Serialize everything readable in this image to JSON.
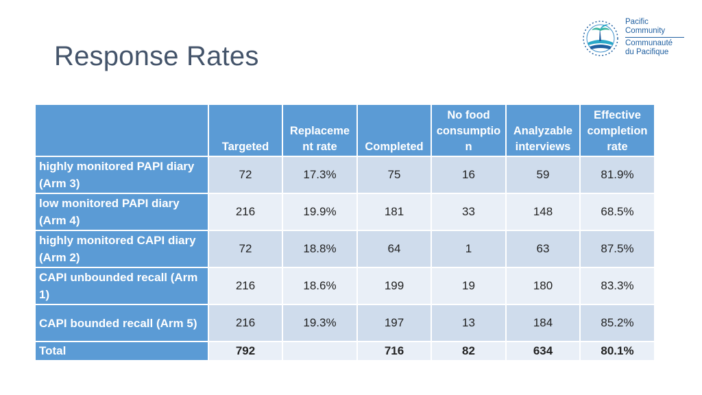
{
  "slide": {
    "title": "Response Rates"
  },
  "logo": {
    "name": "Pacific Community / Communauté du Pacifique",
    "line1": "Pacific",
    "line2": "Community",
    "line3": "Communauté",
    "line4": "du Pacifique"
  },
  "table": {
    "headers": [
      "",
      "Targeted",
      "Replaceme nt rate",
      "Completed",
      "No food consumptio n",
      "Analyzable interviews",
      "Effective completion rate"
    ],
    "rows": [
      {
        "label": "highly monitored PAPI diary (Arm 3)",
        "cells": [
          "72",
          "17.3%",
          "75",
          "16",
          "59",
          "81.9%"
        ]
      },
      {
        "label": "low monitored PAPI diary (Arm 4)",
        "cells": [
          "216",
          "19.9%",
          "181",
          "33",
          "148",
          "68.5%"
        ]
      },
      {
        "label": "highly monitored CAPI diary (Arm 2)",
        "cells": [
          "72",
          "18.8%",
          "64",
          "1",
          "63",
          "87.5%"
        ]
      },
      {
        "label": "CAPI unbounded recall (Arm 1)",
        "cells": [
          "216",
          "18.6%",
          "199",
          "19",
          "180",
          "83.3%"
        ]
      },
      {
        "label": "CAPI bounded recall (Arm 5)",
        "cells": [
          "216",
          "19.3%",
          "197",
          "13",
          "184",
          "85.2%"
        ]
      },
      {
        "label": "Total",
        "cells": [
          "792",
          "",
          "716",
          "82",
          "634",
          "80.1%"
        ]
      }
    ]
  },
  "colors": {
    "header_blue": "#5b9bd5",
    "band_dark": "#cfdcec",
    "band_light": "#e9eff7",
    "title_color": "#44546a"
  }
}
